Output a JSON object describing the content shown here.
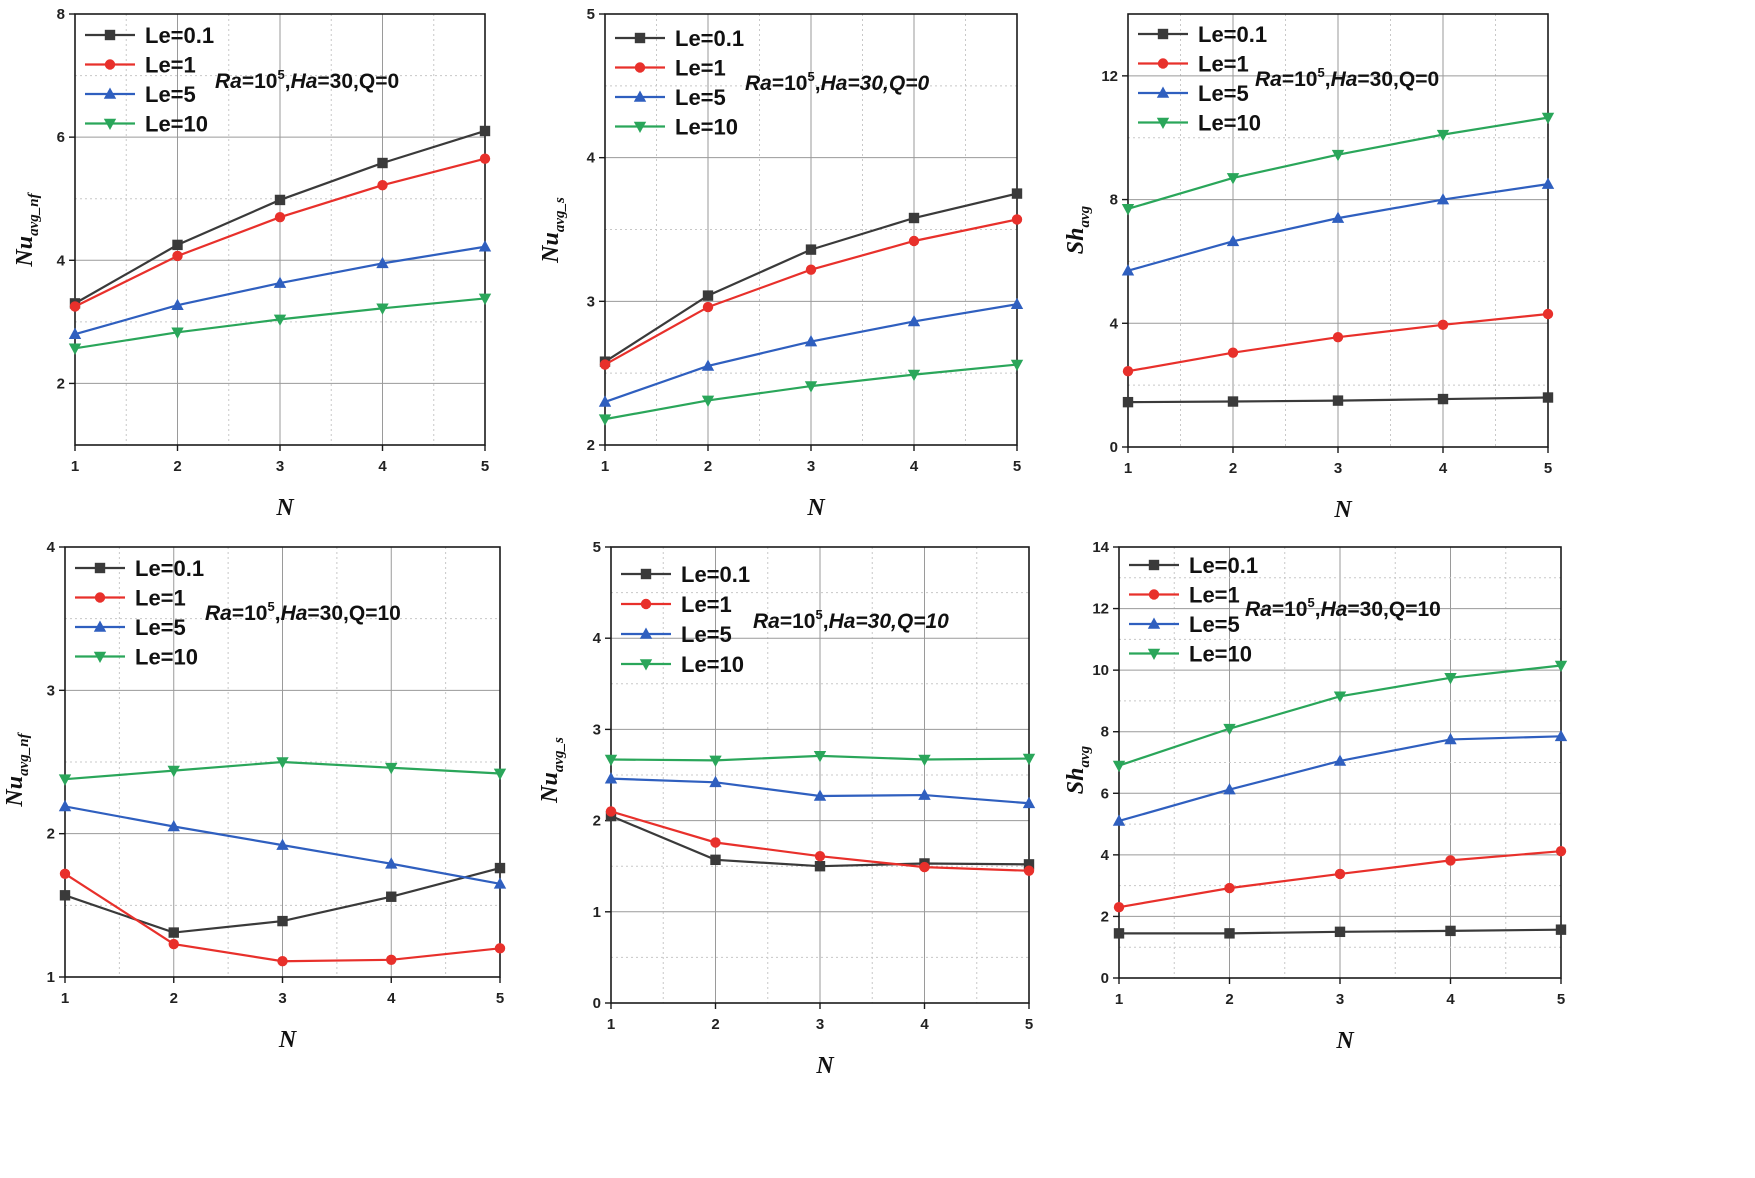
{
  "colors": {
    "Le=0.1": "#3a3a3a",
    "Le=1": "#e8302b",
    "Le=5": "#2f5fbf",
    "Le=10": "#2aa65a"
  },
  "chart_data": [
    {
      "id": "p1",
      "type": "line",
      "title": "",
      "xlabel": "N",
      "ylabel": {
        "main": "Nu",
        "sub": "avg_nf"
      },
      "annotation": {
        "ra": "Ra",
        "ra_val": "=10",
        "sup": "5",
        "rest": ",Ha=30,Q=0",
        "ha_italic": false
      },
      "x": [
        1,
        2,
        3,
        4,
        5
      ],
      "xticks": [
        "1",
        "2",
        "3",
        "4",
        "5"
      ],
      "ylim": [
        1,
        8
      ],
      "yticks": [
        2,
        4,
        6,
        8
      ],
      "ytick_labels": [
        "2",
        "4",
        "6",
        "8"
      ],
      "series": [
        {
          "name": "Le=0.1",
          "marker": "square",
          "values": [
            3.3,
            4.25,
            4.98,
            5.58,
            6.1
          ]
        },
        {
          "name": "Le=1",
          "marker": "circle",
          "values": [
            3.25,
            4.07,
            4.7,
            5.22,
            5.65
          ]
        },
        {
          "name": "Le=5",
          "marker": "triangle-up",
          "values": [
            2.8,
            3.27,
            3.63,
            3.95,
            4.22
          ]
        },
        {
          "name": "Le=10",
          "marker": "triangle-down",
          "values": [
            2.57,
            2.83,
            3.04,
            3.22,
            3.38
          ]
        }
      ]
    },
    {
      "id": "p2",
      "type": "line",
      "title": "",
      "xlabel": "N",
      "ylabel": {
        "main": "Nu",
        "sub": "avg_s"
      },
      "annotation": {
        "ra": "Ra",
        "ra_val": "=10",
        "sup": "5",
        "rest": ",Ha=30,Q=0",
        "ha_italic": true
      },
      "x": [
        1,
        2,
        3,
        4,
        5
      ],
      "xticks": [
        "1",
        "2",
        "3",
        "4",
        "5"
      ],
      "ylim": [
        2,
        5
      ],
      "yticks": [
        2,
        3,
        4,
        5
      ],
      "ytick_labels": [
        "2",
        "3",
        "4",
        "5"
      ],
      "series": [
        {
          "name": "Le=0.1",
          "marker": "square",
          "values": [
            2.58,
            3.04,
            3.36,
            3.58,
            3.75
          ]
        },
        {
          "name": "Le=1",
          "marker": "circle",
          "values": [
            2.56,
            2.96,
            3.22,
            3.42,
            3.57
          ]
        },
        {
          "name": "Le=5",
          "marker": "triangle-up",
          "values": [
            2.3,
            2.55,
            2.72,
            2.86,
            2.98
          ]
        },
        {
          "name": "Le=10",
          "marker": "triangle-down",
          "values": [
            2.18,
            2.31,
            2.41,
            2.49,
            2.56
          ]
        }
      ]
    },
    {
      "id": "p3",
      "type": "line",
      "title": "",
      "xlabel": "N",
      "ylabel": {
        "main": "Sh",
        "sub": "avg"
      },
      "annotation": {
        "ra": "Ra",
        "ra_val": "=10",
        "sup": "5",
        "rest": ",Ha=30,Q=0",
        "ha_italic": false
      },
      "x": [
        1,
        2,
        3,
        4,
        5
      ],
      "xticks": [
        "1",
        "2",
        "3",
        "4",
        "5"
      ],
      "ylim": [
        0,
        14
      ],
      "yticks": [
        0,
        4,
        8,
        12
      ],
      "ytick_labels": [
        "0",
        "4",
        "8",
        "12"
      ],
      "series": [
        {
          "name": "Le=0.1",
          "marker": "square",
          "values": [
            1.45,
            1.47,
            1.5,
            1.55,
            1.6
          ]
        },
        {
          "name": "Le=1",
          "marker": "circle",
          "values": [
            2.45,
            3.05,
            3.55,
            3.95,
            4.3
          ]
        },
        {
          "name": "Le=5",
          "marker": "triangle-up",
          "values": [
            5.7,
            6.65,
            7.4,
            8.0,
            8.5
          ]
        },
        {
          "name": "Le=10",
          "marker": "triangle-down",
          "values": [
            7.7,
            8.7,
            9.45,
            10.1,
            10.65
          ]
        }
      ]
    },
    {
      "id": "p4",
      "type": "line",
      "title": "",
      "xlabel": "N",
      "ylabel": {
        "main": "Nu",
        "sub": "avg_nf"
      },
      "annotation": {
        "ra": "Ra",
        "ra_val": "=10",
        "sup": "5",
        "rest": ",Ha=30,Q=10",
        "ha_italic": false
      },
      "x": [
        1,
        2,
        3,
        4,
        5
      ],
      "xticks": [
        "1",
        "2",
        "3",
        "4",
        "5"
      ],
      "ylim": [
        1,
        4
      ],
      "yticks": [
        1,
        2,
        3,
        4
      ],
      "ytick_labels": [
        "1",
        "2",
        "3",
        "4"
      ],
      "series": [
        {
          "name": "Le=0.1",
          "marker": "square",
          "values": [
            1.57,
            1.31,
            1.39,
            1.56,
            1.76
          ]
        },
        {
          "name": "Le=1",
          "marker": "circle",
          "values": [
            1.72,
            1.23,
            1.11,
            1.12,
            1.2
          ]
        },
        {
          "name": "Le=5",
          "marker": "triangle-up",
          "values": [
            2.19,
            2.05,
            1.92,
            1.79,
            1.65
          ]
        },
        {
          "name": "Le=10",
          "marker": "triangle-down",
          "values": [
            2.38,
            2.44,
            2.5,
            2.46,
            2.42
          ]
        }
      ]
    },
    {
      "id": "p5",
      "type": "line",
      "title": "",
      "xlabel": "N",
      "ylabel": {
        "main": "Nu",
        "sub": "avg_s"
      },
      "annotation": {
        "ra": "Ra",
        "ra_val": "=10",
        "sup": "5",
        "rest": ",Ha=30,Q=10",
        "ha_italic": true
      },
      "x": [
        1,
        2,
        3,
        4,
        5
      ],
      "xticks": [
        "1",
        "2",
        "3",
        "4",
        "5"
      ],
      "ylim": [
        0,
        5
      ],
      "yticks": [
        0,
        1,
        2,
        3,
        4,
        5
      ],
      "ytick_labels": [
        "0",
        "1",
        "2",
        "3",
        "4",
        "5"
      ],
      "series": [
        {
          "name": "Le=0.1",
          "marker": "square",
          "values": [
            2.05,
            1.57,
            1.5,
            1.53,
            1.52
          ]
        },
        {
          "name": "Le=1",
          "marker": "circle",
          "values": [
            2.1,
            1.76,
            1.61,
            1.49,
            1.45
          ]
        },
        {
          "name": "Le=5",
          "marker": "triangle-up",
          "values": [
            2.46,
            2.42,
            2.27,
            2.28,
            2.19
          ]
        },
        {
          "name": "Le=10",
          "marker": "triangle-down",
          "values": [
            2.67,
            2.66,
            2.71,
            2.67,
            2.68
          ]
        }
      ]
    },
    {
      "id": "p6",
      "type": "line",
      "title": "",
      "xlabel": "N",
      "ylabel": {
        "main": "Sh",
        "sub": "avg"
      },
      "annotation": {
        "ra": "Ra",
        "ra_val": "=10",
        "sup": "5",
        "rest": ",Ha=30,Q=10",
        "ha_italic": false
      },
      "x": [
        1,
        2,
        3,
        4,
        5
      ],
      "xticks": [
        "1",
        "2",
        "3",
        "4",
        "5"
      ],
      "ylim": [
        0,
        14
      ],
      "yticks": [
        0,
        2,
        4,
        6,
        8,
        10,
        12,
        14
      ],
      "ytick_labels": [
        "0",
        "2",
        "4",
        "6",
        "8",
        "10",
        "12",
        "14"
      ],
      "series": [
        {
          "name": "Le=0.1",
          "marker": "square",
          "values": [
            1.45,
            1.45,
            1.5,
            1.53,
            1.57
          ]
        },
        {
          "name": "Le=1",
          "marker": "circle",
          "values": [
            2.3,
            2.92,
            3.38,
            3.82,
            4.12
          ]
        },
        {
          "name": "Le=5",
          "marker": "triangle-up",
          "values": [
            5.1,
            6.12,
            7.05,
            7.75,
            7.85
          ]
        },
        {
          "name": "Le=10",
          "marker": "triangle-down",
          "values": [
            6.9,
            8.1,
            9.15,
            9.75,
            10.15
          ]
        }
      ]
    }
  ]
}
